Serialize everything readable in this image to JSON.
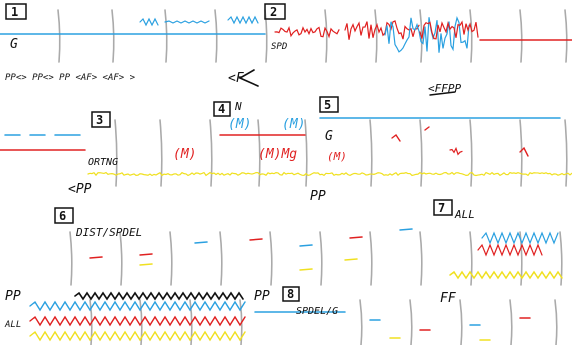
{
  "sketch": {
    "panel_1": {
      "number": "1",
      "label": "G"
    },
    "panel_2": {
      "number": "2",
      "label": "SPD"
    },
    "row_notes": [
      "PP<> PP<> PP <AF> <AF> >",
      "<F",
      "<FFPP"
    ],
    "panel_3": {
      "number": "3",
      "label": "ORTNG",
      "note": "<PP"
    },
    "panel_4": {
      "number": "4",
      "mark": "N",
      "labels": [
        "(M)",
        "(M)",
        "(M)",
        "(M)Mg"
      ]
    },
    "panel_5": {
      "number": "5",
      "label": "G",
      "note": "(M)"
    },
    "mid_note": "PP",
    "panel_6": {
      "number": "6",
      "label": "DIST/SPDEL"
    },
    "panel_7": {
      "number": "7",
      "label": "ALL"
    },
    "panel_8": {
      "number": "8",
      "label": "SPDEL/G"
    },
    "bottom_labels": [
      "PP",
      "ALL",
      "PP",
      "FF"
    ]
  }
}
